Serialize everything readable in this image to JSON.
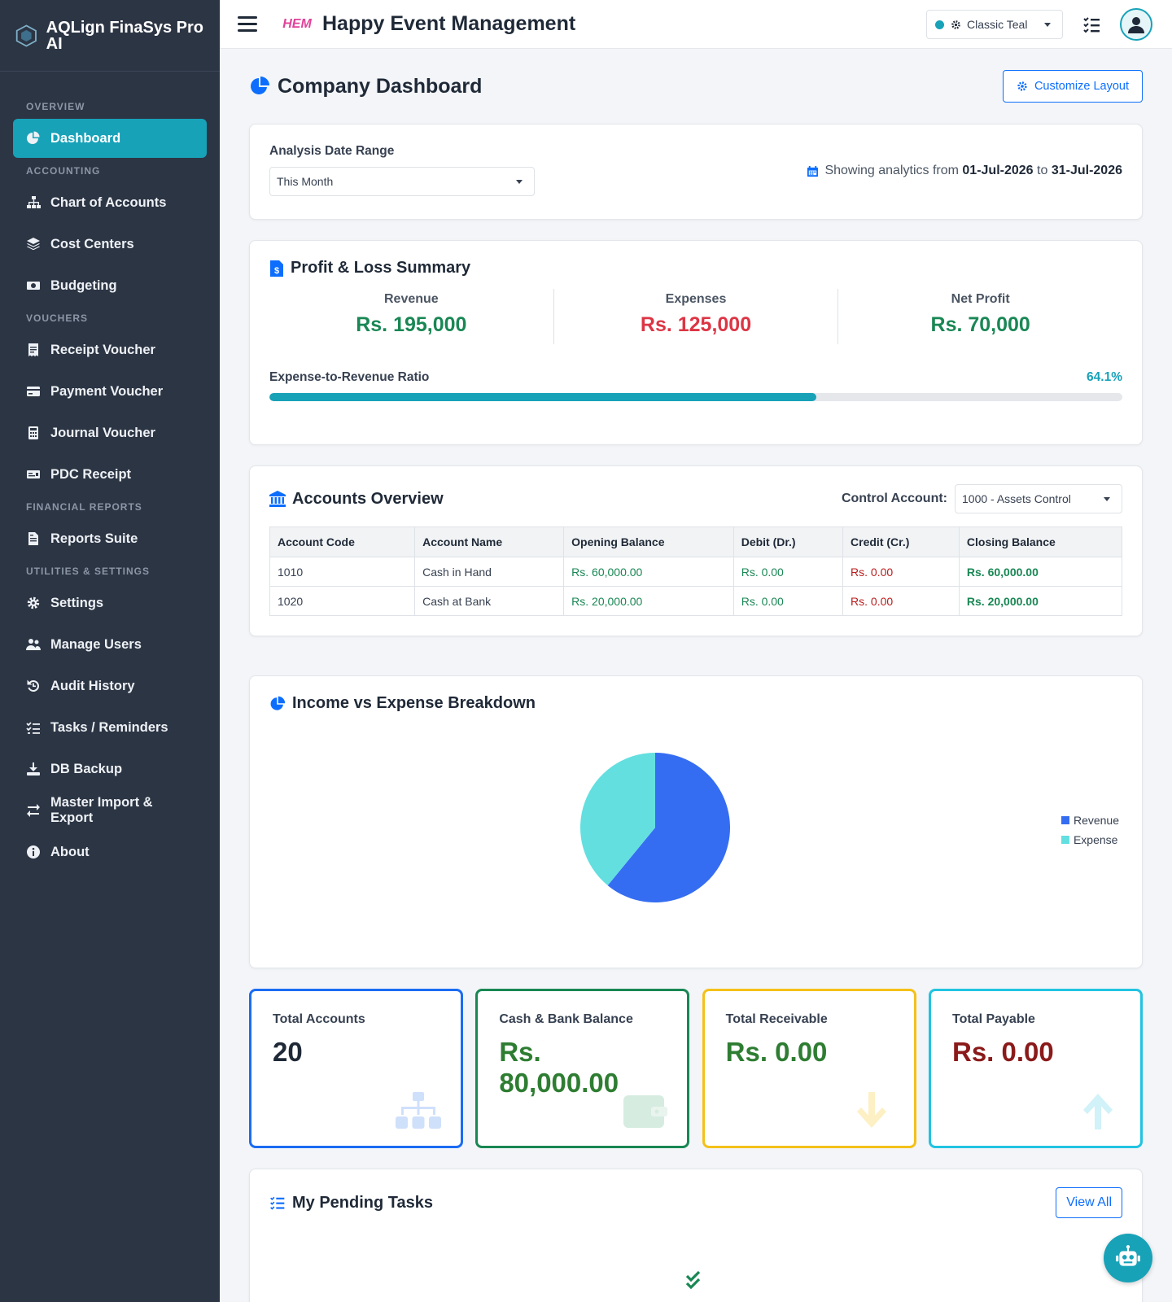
{
  "app": {
    "title": "AQLign FinaSys Pro AI"
  },
  "sidebar": {
    "sections": [
      {
        "label": "OVERVIEW",
        "items": [
          {
            "label": "Dashboard",
            "icon": "pie-chart-icon",
            "active": true
          }
        ]
      },
      {
        "label": "ACCOUNTING",
        "items": [
          {
            "label": "Chart of Accounts",
            "icon": "sitemap-icon"
          },
          {
            "label": "Cost Centers",
            "icon": "layers-icon"
          },
          {
            "label": "Budgeting",
            "icon": "money-icon"
          }
        ]
      },
      {
        "label": "VOUCHERS",
        "items": [
          {
            "label": "Receipt Voucher",
            "icon": "receipt-icon"
          },
          {
            "label": "Payment Voucher",
            "icon": "credit-card-icon"
          },
          {
            "label": "Journal Voucher",
            "icon": "calculator-icon"
          },
          {
            "label": "PDC Receipt",
            "icon": "cheque-icon"
          }
        ]
      },
      {
        "label": "FINANCIAL REPORTS",
        "items": [
          {
            "label": "Reports Suite",
            "icon": "file-invoice-icon"
          }
        ]
      },
      {
        "label": "UTILITIES & SETTINGS",
        "items": [
          {
            "label": "Settings",
            "icon": "gear-icon"
          },
          {
            "label": "Manage Users",
            "icon": "users-icon"
          },
          {
            "label": "Audit History",
            "icon": "history-icon"
          },
          {
            "label": "Tasks / Reminders",
            "icon": "tasks-icon"
          },
          {
            "label": "DB Backup",
            "icon": "download-icon"
          },
          {
            "label": "Master Import & Export",
            "icon": "exchange-icon"
          },
          {
            "label": "About",
            "icon": "info-icon"
          }
        ]
      }
    ]
  },
  "topbar": {
    "company_logo_text": "HEM",
    "company_name": "Happy Event Management",
    "theme": "Classic Teal"
  },
  "page": {
    "title": "Company Dashboard",
    "customize_label": "Customize Layout"
  },
  "date_range": {
    "label": "Analysis Date Range",
    "selected": "This Month",
    "info_prefix": "Showing analytics from",
    "from": "01-Jul-2026",
    "to_word": "to",
    "to": "31-Jul-2026"
  },
  "pl": {
    "title": "Profit & Loss Summary",
    "revenue_label": "Revenue",
    "revenue_value": "Rs. 195,000",
    "expenses_label": "Expenses",
    "expenses_value": "Rs. 125,000",
    "net_label": "Net Profit",
    "net_value": "Rs. 70,000",
    "ratio_label": "Expense-to-Revenue Ratio",
    "ratio_value": "64.1%",
    "ratio_fraction": 0.641
  },
  "accounts": {
    "title": "Accounts Overview",
    "control_label": "Control Account:",
    "control_value": "1000 - Assets Control",
    "columns": [
      "Account Code",
      "Account Name",
      "Opening Balance",
      "Debit (Dr.)",
      "Credit (Cr.)",
      "Closing Balance"
    ],
    "rows": [
      [
        "1010",
        "Cash in Hand",
        "Rs. 60,000.00",
        "Rs. 0.00",
        "Rs. 0.00",
        "Rs. 60,000.00"
      ],
      [
        "1020",
        "Cash at Bank",
        "Rs. 20,000.00",
        "Rs. 0.00",
        "Rs. 0.00",
        "Rs. 20,000.00"
      ]
    ]
  },
  "pie": {
    "title": "Income vs Expense Breakdown",
    "chart_data": {
      "type": "pie",
      "labels": [
        "Revenue",
        "Expense"
      ],
      "values": [
        195000,
        125000
      ],
      "colors": [
        "#356df2",
        "#63dfe0"
      ],
      "legend": "right"
    }
  },
  "stats": [
    {
      "label": "Total Accounts",
      "value": "20",
      "border": "#1b6cf2",
      "color": "#1f2937",
      "icon": "sitemap-icon",
      "icon_color": "#cfe0fb"
    },
    {
      "label": "Cash & Bank Balance",
      "value": "Rs. 80,000.00",
      "border": "#198754",
      "color": "#2e7d32",
      "icon": "wallet-icon",
      "icon_color": "#d6ece1"
    },
    {
      "label": "Total Receivable",
      "value": "Rs. 0.00",
      "border": "#f4c11a",
      "color": "#2e7d32",
      "icon": "arrow-down-icon",
      "icon_color": "#fdf0c4"
    },
    {
      "label": "Total Payable",
      "value": "Rs. 0.00",
      "border": "#21c3e0",
      "color": "#8b1a1a",
      "icon": "arrow-up-icon",
      "icon_color": "#d0f2f8"
    }
  ],
  "tasks": {
    "title": "My Pending Tasks",
    "view_all": "View All"
  }
}
